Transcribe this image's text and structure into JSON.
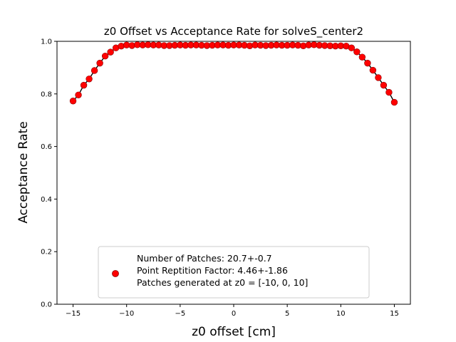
{
  "chart_data": {
    "type": "scatter",
    "title": "z0 Offset vs Acceptance Rate for solveS_center2",
    "xlabel": "z0 offset [cm]",
    "ylabel": "Acceptance Rate",
    "xlim": [
      -16.5,
      16.5
    ],
    "ylim": [
      0.0,
      1.0
    ],
    "xticks": [
      -15,
      -10,
      -5,
      0,
      5,
      10,
      15
    ],
    "yticks": [
      0.0,
      0.2,
      0.4,
      0.6,
      0.8,
      1.0
    ],
    "grid": false,
    "legend_position": "lower center",
    "colors": {
      "points": "#ff0000",
      "points_edge": "#8b0000",
      "fit_line": "#000000",
      "axes": "#000000"
    },
    "series": [
      {
        "name": "Number of Patches: 20.7+-0.7\nPoint Reptition Factor: 4.46+-1.86\nPatches generated at z0 = [-10, 0, 10]",
        "marker": "circle",
        "x": [
          -15,
          -14.5,
          -14,
          -13.5,
          -13,
          -12.5,
          -12,
          -11.5,
          -11,
          -10.5,
          -10,
          -9.5,
          -9,
          -8.5,
          -8,
          -7.5,
          -7,
          -6.5,
          -6,
          -5.5,
          -5,
          -4.5,
          -4,
          -3.5,
          -3,
          -2.5,
          -2,
          -1.5,
          -1,
          -0.5,
          0,
          0.5,
          1,
          1.5,
          2,
          2.5,
          3,
          3.5,
          4,
          4.5,
          5,
          5.5,
          6,
          6.5,
          7,
          7.5,
          8,
          8.5,
          9,
          9.5,
          10,
          10.5,
          11,
          11.5,
          12,
          12.5,
          13,
          13.5,
          14,
          14.5,
          15
        ],
        "y": [
          0.773,
          0.796,
          0.833,
          0.857,
          0.889,
          0.917,
          0.944,
          0.959,
          0.975,
          0.982,
          0.986,
          0.984,
          0.987,
          0.986,
          0.987,
          0.986,
          0.986,
          0.984,
          0.984,
          0.985,
          0.986,
          0.985,
          0.986,
          0.986,
          0.985,
          0.984,
          0.985,
          0.986,
          0.986,
          0.985,
          0.986,
          0.986,
          0.985,
          0.983,
          0.986,
          0.985,
          0.984,
          0.985,
          0.986,
          0.985,
          0.985,
          0.986,
          0.985,
          0.983,
          0.986,
          0.987,
          0.985,
          0.984,
          0.983,
          0.982,
          0.983,
          0.982,
          0.975,
          0.96,
          0.94,
          0.917,
          0.89,
          0.862,
          0.833,
          0.806,
          0.768
        ]
      }
    ]
  }
}
